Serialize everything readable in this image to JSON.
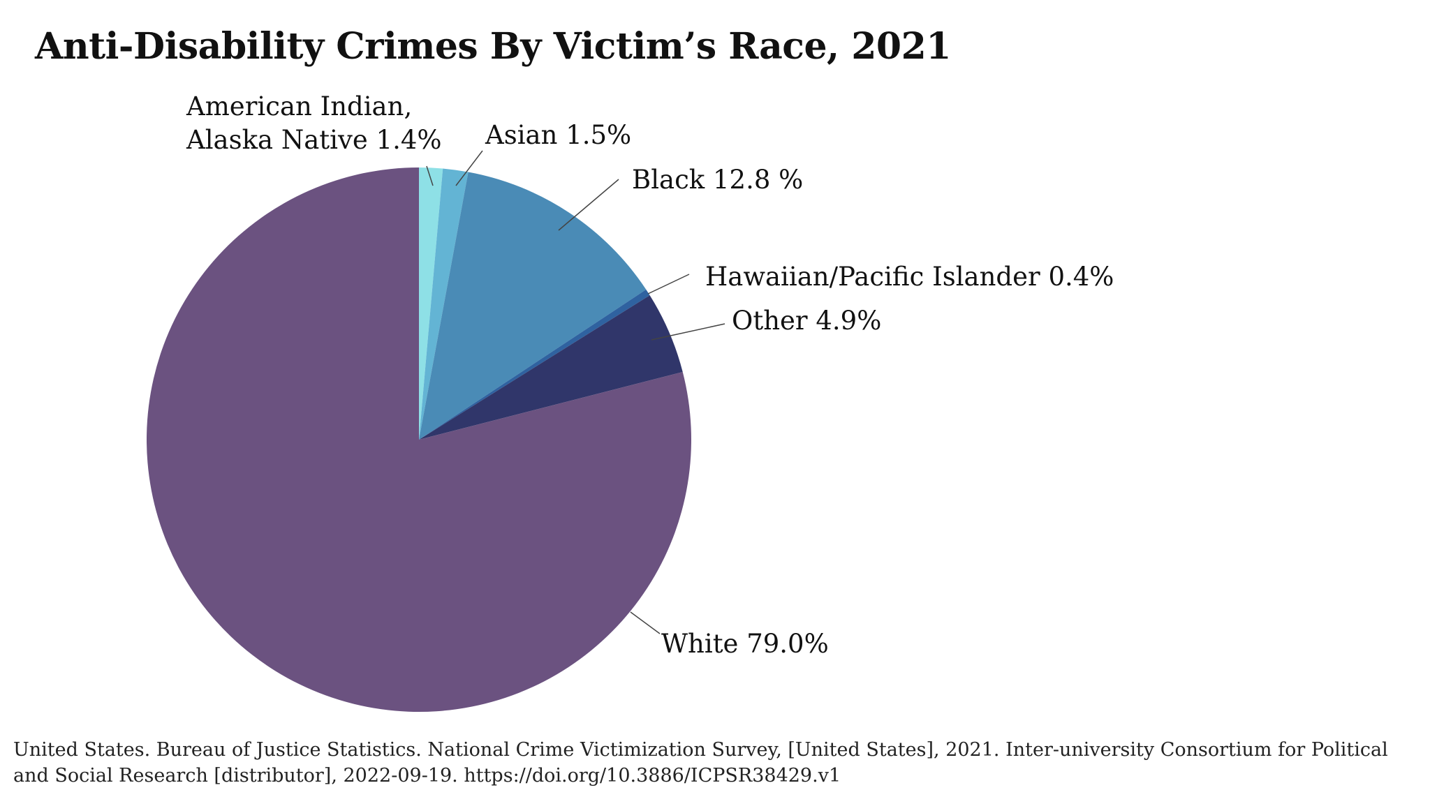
{
  "chart_data": {
    "type": "pie",
    "title": "Anti-Disability Crimes By Victim’s Race, 2021",
    "slices": [
      {
        "name": "American Indian, Alaska Native",
        "label_lines": [
          "American Indian,",
          "Alaska Native 1.4%"
        ],
        "value": 1.4,
        "color": "#8ee0e6"
      },
      {
        "name": "Asian",
        "label_lines": [
          "Asian 1.5%"
        ],
        "value": 1.5,
        "color": "#63b4d4"
      },
      {
        "name": "Black",
        "label_lines": [
          "Black 12.8 %"
        ],
        "value": 12.8,
        "color": "#4a8bb6"
      },
      {
        "name": "Hawaiian/Pacific Islander",
        "label_lines": [
          "Hawaiian/Pacific Islander 0.4%"
        ],
        "value": 0.4,
        "color": "#2f62a0"
      },
      {
        "name": "Other",
        "label_lines": [
          "Other 4.9%"
        ],
        "value": 4.9,
        "color": "#30366a"
      },
      {
        "name": "White",
        "label_lines": [
          "White 79.0%"
        ],
        "value": 79.0,
        "color": "#6b5280"
      }
    ]
  },
  "source": "United States. Bureau of Justice Statistics. National Crime Victimization Survey, [United States], 2021. Inter-university Consortium for Political and Social Research [distributor], 2022-09-19. https://doi.org/10.3886/ICPSR38429.v1"
}
